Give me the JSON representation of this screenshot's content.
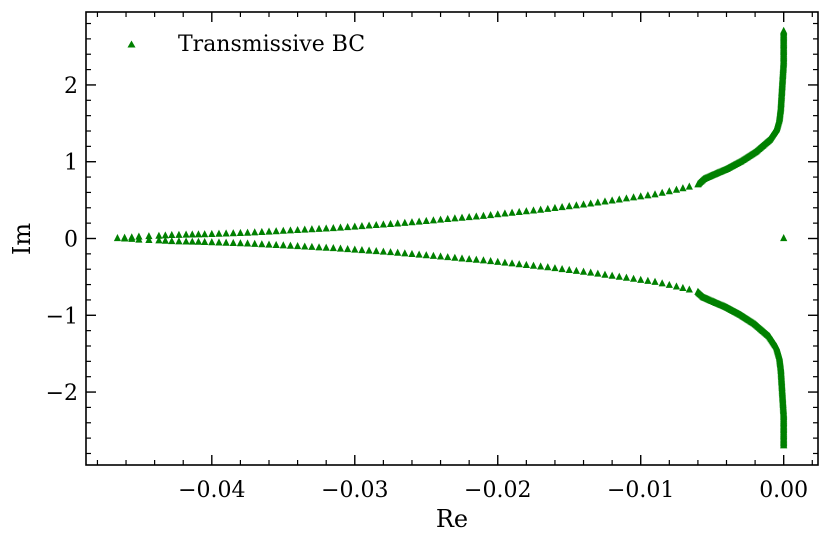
{
  "chart_data": {
    "type": "scatter",
    "title": "",
    "xlabel": "Re",
    "ylabel": "Im",
    "xlim": [
      -0.0488,
      0.0024
    ],
    "ylim": [
      -2.95,
      2.95
    ],
    "xticks": [
      -0.04,
      -0.03,
      -0.02,
      -0.01,
      0.0
    ],
    "xtick_labels": [
      "−0.04",
      "−0.03",
      "−0.02",
      "−0.01",
      "0.00"
    ],
    "yticks": [
      -2,
      -1,
      0,
      1,
      2
    ],
    "ytick_labels": [
      "−2",
      "−1",
      "0",
      "1",
      "2"
    ],
    "grid": false,
    "legend": {
      "position": "top-left",
      "marker": "triangle"
    },
    "series": [
      {
        "name": "Transmissive BC",
        "color": "#008000",
        "marker": "triangle",
        "symmetric_about_real_axis": true,
        "upper_branch": [
          [
            -0.0466,
            0.0
          ],
          [
            -0.0456,
            0.01
          ],
          [
            -0.0451,
            0.02
          ],
          [
            -0.0444,
            0.025
          ],
          [
            -0.0437,
            0.03
          ],
          [
            -0.0428,
            0.04
          ],
          [
            -0.0418,
            0.045
          ],
          [
            -0.0405,
            0.05
          ],
          [
            -0.039,
            0.06
          ],
          [
            -0.0375,
            0.07
          ],
          [
            -0.036,
            0.085
          ],
          [
            -0.0345,
            0.1
          ],
          [
            -0.033,
            0.115
          ],
          [
            -0.0315,
            0.13
          ],
          [
            -0.03,
            0.15
          ],
          [
            -0.0285,
            0.17
          ],
          [
            -0.027,
            0.19
          ],
          [
            -0.0255,
            0.215
          ],
          [
            -0.024,
            0.24
          ],
          [
            -0.0225,
            0.265
          ],
          [
            -0.021,
            0.29
          ],
          [
            -0.0195,
            0.32
          ],
          [
            -0.018,
            0.35
          ],
          [
            -0.0165,
            0.38
          ],
          [
            -0.015,
            0.415
          ],
          [
            -0.0135,
            0.45
          ],
          [
            -0.012,
            0.49
          ],
          [
            -0.0105,
            0.53
          ],
          [
            -0.009,
            0.57
          ],
          [
            -0.0075,
            0.63
          ],
          [
            -0.0066,
            0.67
          ],
          [
            -0.006,
            0.7
          ],
          [
            -0.0059,
            0.72
          ],
          [
            -0.0056,
            0.77
          ],
          [
            -0.005,
            0.82
          ],
          [
            -0.004,
            0.9
          ],
          [
            -0.003,
            1.0
          ],
          [
            -0.002,
            1.12
          ],
          [
            -0.001,
            1.28
          ],
          [
            -0.0005,
            1.42
          ],
          [
            -0.0003,
            1.55
          ],
          [
            -0.0002,
            1.7
          ],
          [
            -0.0001,
            2.0
          ],
          [
            0.0,
            2.3
          ],
          [
            0.0,
            2.7
          ]
        ],
        "extra_points": [
          [
            0.0,
            0.0
          ]
        ]
      }
    ]
  }
}
